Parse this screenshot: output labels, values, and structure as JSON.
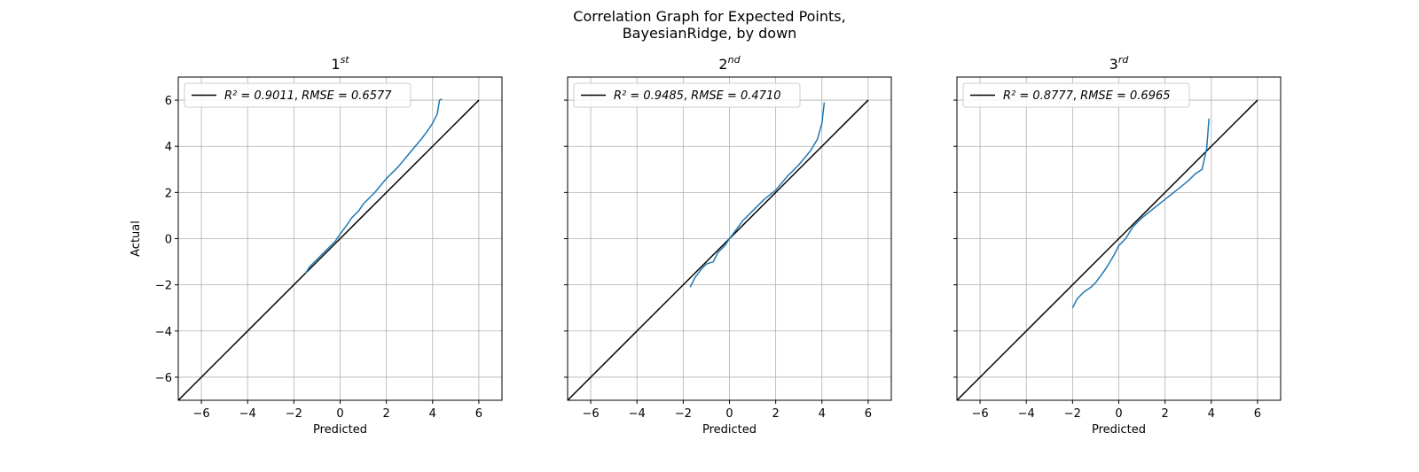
{
  "figure": {
    "title_line1": "Correlation Graph for Expected Points,",
    "title_line2": "BayesianRidge, by down"
  },
  "colors": {
    "series": "#1f77b4",
    "fit": "#000000",
    "grid": "#b0b0b0"
  },
  "chart_data": [
    {
      "type": "line",
      "title_num": "1",
      "title_sup": "st",
      "xlabel": "Predicted",
      "ylabel": "Actual",
      "xlim": [
        -7,
        7
      ],
      "ylim": [
        -7,
        7
      ],
      "xticks": [
        -6,
        -4,
        -2,
        0,
        2,
        4,
        6
      ],
      "yticks": [
        -6,
        -4,
        -2,
        0,
        2,
        4,
        6
      ],
      "xtick_labels": [
        "−6",
        "−4",
        "−2",
        "0",
        "2",
        "4",
        "6"
      ],
      "ytick_labels": [
        "−6",
        "−4",
        "−2",
        "0",
        "2",
        "4",
        "6"
      ],
      "grid": true,
      "legend": {
        "position": "top-left",
        "label_r2": "R² = 0.9011",
        "label_sep": ", ",
        "label_rmse": "RMSE = 0.6577"
      },
      "identity_line": {
        "x": [
          -7,
          6
        ],
        "y": [
          -7,
          6
        ]
      },
      "series": {
        "x": [
          -1.5,
          -1.3,
          -1.0,
          -0.8,
          -0.5,
          -0.2,
          0.0,
          0.3,
          0.5,
          0.8,
          1.0,
          1.5,
          2.0,
          2.5,
          3.0,
          3.5,
          3.8,
          4.0,
          4.2,
          4.3,
          4.4
        ],
        "y": [
          -1.5,
          -1.2,
          -0.9,
          -0.7,
          -0.4,
          -0.1,
          0.2,
          0.6,
          0.9,
          1.2,
          1.5,
          2.0,
          2.6,
          3.1,
          3.7,
          4.3,
          4.7,
          5.0,
          5.4,
          6.0,
          6.05
        ]
      }
    },
    {
      "type": "line",
      "title_num": "2",
      "title_sup": "nd",
      "xlabel": "Predicted",
      "ylabel": "",
      "xlim": [
        -7,
        7
      ],
      "ylim": [
        -7,
        7
      ],
      "xticks": [
        -6,
        -4,
        -2,
        0,
        2,
        4,
        6
      ],
      "yticks": [
        -6,
        -4,
        -2,
        0,
        2,
        4,
        6
      ],
      "xtick_labels": [
        "−6",
        "−4",
        "−2",
        "0",
        "2",
        "4",
        "6"
      ],
      "ytick_labels": [],
      "grid": true,
      "legend": {
        "position": "top-left",
        "label_r2": "R² = 0.9485",
        "label_sep": ", ",
        "label_rmse": "RMSE = 0.4710"
      },
      "identity_line": {
        "x": [
          -7,
          6
        ],
        "y": [
          -7,
          6
        ]
      },
      "series": {
        "x": [
          -1.7,
          -1.5,
          -1.2,
          -1.0,
          -0.7,
          -0.5,
          -0.2,
          0.0,
          0.3,
          0.6,
          1.0,
          1.5,
          2.0,
          2.5,
          3.0,
          3.5,
          3.8,
          4.0,
          4.1
        ],
        "y": [
          -2.1,
          -1.7,
          -1.3,
          -1.1,
          -1.0,
          -0.6,
          -0.3,
          0.0,
          0.4,
          0.8,
          1.2,
          1.7,
          2.1,
          2.7,
          3.2,
          3.8,
          4.3,
          5.0,
          5.9
        ]
      }
    },
    {
      "type": "line",
      "title_num": "3",
      "title_sup": "rd",
      "xlabel": "Predicted",
      "ylabel": "",
      "xlim": [
        -7,
        7
      ],
      "ylim": [
        -7,
        7
      ],
      "xticks": [
        -6,
        -4,
        -2,
        0,
        2,
        4,
        6
      ],
      "yticks": [
        -6,
        -4,
        -2,
        0,
        2,
        4,
        6
      ],
      "xtick_labels": [
        "−6",
        "−4",
        "−2",
        "0",
        "2",
        "4",
        "6"
      ],
      "ytick_labels": [],
      "grid": true,
      "legend": {
        "position": "top-left",
        "label_r2": "R² = 0.8777",
        "label_sep": ", ",
        "label_rmse": "RMSE = 0.6965"
      },
      "identity_line": {
        "x": [
          -7,
          6
        ],
        "y": [
          -7,
          6
        ]
      },
      "series": {
        "x": [
          -2.0,
          -1.8,
          -1.5,
          -1.2,
          -1.0,
          -0.7,
          -0.5,
          -0.2,
          0.0,
          0.3,
          0.6,
          1.0,
          1.5,
          2.0,
          2.5,
          3.0,
          3.3,
          3.6,
          3.8,
          3.9
        ],
        "y": [
          -3.0,
          -2.6,
          -2.3,
          -2.1,
          -1.9,
          -1.5,
          -1.2,
          -0.7,
          -0.3,
          0.0,
          0.5,
          0.9,
          1.3,
          1.7,
          2.1,
          2.5,
          2.8,
          3.0,
          3.9,
          5.2
        ]
      }
    }
  ]
}
